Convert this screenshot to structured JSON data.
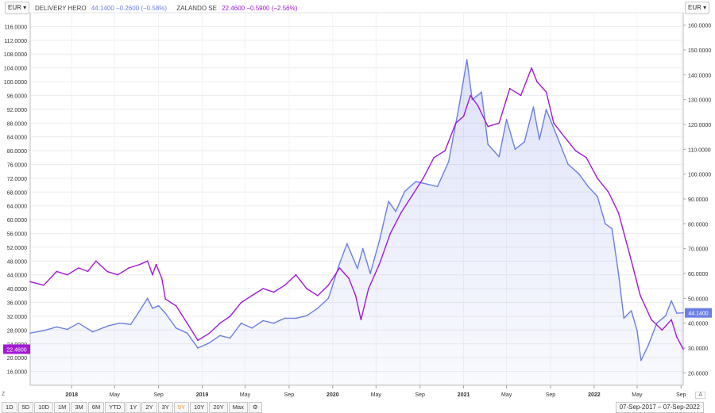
{
  "currency_left": "EUR",
  "currency_right": "EUR",
  "legend": {
    "s1_name": "DELIVERY HERO",
    "s1_quote": "44.1400 −0.2600 (−0.58%)",
    "s2_name": "ZALANDO SE",
    "s2_quote": "22.4600 −0.5900 (−2.56%)"
  },
  "colors": {
    "delivery_hero": "#6b7fe3",
    "zalando": "#a21ad6",
    "active": "#f39a2b"
  },
  "toolbar": {
    "buttons": [
      "1D",
      "5D",
      "10D",
      "1M",
      "3M",
      "6M",
      "YTD",
      "1Y",
      "2Y",
      "3Y",
      "5Y",
      "10Y",
      "20Y",
      "Max"
    ],
    "active": "5Y",
    "settings_icon": "gear-icon",
    "zoom_label": "Z",
    "auto_label": "A"
  },
  "date_range": "07-Sep-2017 – 07-Sep-2022",
  "chart_data": {
    "type": "line",
    "x_axis": {
      "range": [
        "2017-09-07",
        "2022-09-07"
      ],
      "tick_labels": [
        {
          "date": "2018-01-01",
          "label": "2018"
        },
        {
          "date": "2018-05-01",
          "label": "May"
        },
        {
          "date": "2018-09-01",
          "label": "Sep"
        },
        {
          "date": "2019-01-01",
          "label": "2019"
        },
        {
          "date": "2019-05-01",
          "label": "May"
        },
        {
          "date": "2019-09-01",
          "label": "Sep"
        },
        {
          "date": "2020-01-01",
          "label": "2020"
        },
        {
          "date": "2020-05-01",
          "label": "May"
        },
        {
          "date": "2020-09-01",
          "label": "Sep"
        },
        {
          "date": "2021-01-01",
          "label": "2021"
        },
        {
          "date": "2021-05-01",
          "label": "May"
        },
        {
          "date": "2021-09-01",
          "label": "Sep"
        },
        {
          "date": "2022-01-01",
          "label": "2022"
        },
        {
          "date": "2022-05-01",
          "label": "May"
        },
        {
          "date": "2022-09-01",
          "label": "Sep"
        }
      ]
    },
    "left_axis": {
      "ylim": [
        12,
        120
      ],
      "tick_labels": [
        "16.0000",
        "20.0000",
        "24.0000",
        "28.0000",
        "32.0000",
        "36.0000",
        "40.0000",
        "44.0000",
        "48.0000",
        "52.0000",
        "56.0000",
        "60.0000",
        "64.0000",
        "68.0000",
        "72.0000",
        "76.0000",
        "80.0000",
        "84.0000",
        "88.0000",
        "92.0000",
        "96.0000",
        "100.0000",
        "104.0000",
        "108.0000",
        "112.0000",
        "116.0000"
      ],
      "last_value_label": "22.4600"
    },
    "right_axis": {
      "ylim": [
        15,
        165
      ],
      "tick_labels": [
        "20.0000",
        "30.0000",
        "40.0000",
        "50.0000",
        "60.0000",
        "70.0000",
        "80.0000",
        "90.0000",
        "100.0000",
        "110.0000",
        "120.0000",
        "130.0000",
        "140.0000",
        "150.0000",
        "160.0000"
      ],
      "last_value_label": "44.1400"
    },
    "grid": true,
    "series": [
      {
        "name": "DELIVERY HERO",
        "axis": "right",
        "area_fill": true,
        "points": [
          [
            "2017-09-07",
            36
          ],
          [
            "2017-10-15",
            37
          ],
          [
            "2017-11-20",
            38.5
          ],
          [
            "2017-12-20",
            37.5
          ],
          [
            "2018-01-20",
            40
          ],
          [
            "2018-03-01",
            36.5
          ],
          [
            "2018-04-15",
            39
          ],
          [
            "2018-05-15",
            40
          ],
          [
            "2018-06-15",
            39.5
          ],
          [
            "2018-07-10",
            45
          ],
          [
            "2018-08-01",
            50
          ],
          [
            "2018-08-15",
            46
          ],
          [
            "2018-09-01",
            47
          ],
          [
            "2018-09-20",
            44
          ],
          [
            "2018-10-20",
            38
          ],
          [
            "2018-11-20",
            36
          ],
          [
            "2018-12-20",
            30
          ],
          [
            "2019-01-20",
            32
          ],
          [
            "2019-02-20",
            35
          ],
          [
            "2019-03-20",
            34
          ],
          [
            "2019-04-20",
            40
          ],
          [
            "2019-05-20",
            38
          ],
          [
            "2019-06-20",
            41
          ],
          [
            "2019-07-20",
            40
          ],
          [
            "2019-08-20",
            42
          ],
          [
            "2019-09-20",
            42
          ],
          [
            "2019-10-20",
            43
          ],
          [
            "2019-11-20",
            46
          ],
          [
            "2019-12-20",
            50
          ],
          [
            "2020-01-20",
            64
          ],
          [
            "2020-02-10",
            72
          ],
          [
            "2020-03-10",
            62
          ],
          [
            "2020-03-25",
            70
          ],
          [
            "2020-04-15",
            60
          ],
          [
            "2020-05-10",
            73
          ],
          [
            "2020-06-05",
            89
          ],
          [
            "2020-06-25",
            85
          ],
          [
            "2020-07-20",
            93
          ],
          [
            "2020-08-20",
            97
          ],
          [
            "2020-09-20",
            96
          ],
          [
            "2020-10-20",
            95
          ],
          [
            "2020-11-20",
            105
          ],
          [
            "2020-12-20",
            128
          ],
          [
            "2021-01-10",
            146
          ],
          [
            "2021-01-25",
            130
          ],
          [
            "2021-02-20",
            133
          ],
          [
            "2021-03-10",
            112
          ],
          [
            "2021-04-10",
            107
          ],
          [
            "2021-05-01",
            122
          ],
          [
            "2021-05-25",
            110
          ],
          [
            "2021-06-20",
            113
          ],
          [
            "2021-07-15",
            127
          ],
          [
            "2021-08-01",
            114
          ],
          [
            "2021-08-20",
            126
          ],
          [
            "2021-09-20",
            115
          ],
          [
            "2021-10-20",
            104
          ],
          [
            "2021-11-20",
            100
          ],
          [
            "2021-12-15",
            95
          ],
          [
            "2022-01-10",
            91
          ],
          [
            "2022-02-01",
            80
          ],
          [
            "2022-02-20",
            78
          ],
          [
            "2022-03-10",
            60
          ],
          [
            "2022-03-25",
            42
          ],
          [
            "2022-04-15",
            45
          ],
          [
            "2022-05-01",
            37
          ],
          [
            "2022-05-12",
            25
          ],
          [
            "2022-06-01",
            31
          ],
          [
            "2022-06-25",
            40
          ],
          [
            "2022-07-20",
            43
          ],
          [
            "2022-08-05",
            49
          ],
          [
            "2022-08-20",
            44
          ],
          [
            "2022-09-07",
            44.14
          ]
        ]
      },
      {
        "name": "ZALANDO SE",
        "axis": "left",
        "area_fill": false,
        "points": [
          [
            "2017-09-07",
            42
          ],
          [
            "2017-10-15",
            41
          ],
          [
            "2017-11-20",
            45
          ],
          [
            "2017-12-20",
            44
          ],
          [
            "2018-01-20",
            46
          ],
          [
            "2018-02-15",
            45
          ],
          [
            "2018-03-10",
            48
          ],
          [
            "2018-04-10",
            45
          ],
          [
            "2018-05-10",
            44
          ],
          [
            "2018-06-10",
            46
          ],
          [
            "2018-07-10",
            47
          ],
          [
            "2018-08-01",
            48
          ],
          [
            "2018-08-15",
            44
          ],
          [
            "2018-08-25",
            47
          ],
          [
            "2018-09-10",
            43
          ],
          [
            "2018-09-20",
            37
          ],
          [
            "2018-10-20",
            35
          ],
          [
            "2018-11-20",
            30
          ],
          [
            "2018-12-20",
            25
          ],
          [
            "2019-01-20",
            27
          ],
          [
            "2019-02-20",
            30
          ],
          [
            "2019-03-20",
            32
          ],
          [
            "2019-04-20",
            36
          ],
          [
            "2019-05-20",
            38
          ],
          [
            "2019-06-20",
            40
          ],
          [
            "2019-07-20",
            39
          ],
          [
            "2019-08-20",
            41
          ],
          [
            "2019-09-20",
            44
          ],
          [
            "2019-10-20",
            40
          ],
          [
            "2019-11-20",
            38
          ],
          [
            "2019-12-20",
            41
          ],
          [
            "2020-01-20",
            46
          ],
          [
            "2020-02-15",
            43
          ],
          [
            "2020-03-05",
            38
          ],
          [
            "2020-03-20",
            31
          ],
          [
            "2020-04-10",
            40
          ],
          [
            "2020-05-10",
            47
          ],
          [
            "2020-06-10",
            56
          ],
          [
            "2020-07-10",
            62
          ],
          [
            "2020-08-10",
            67
          ],
          [
            "2020-09-10",
            72
          ],
          [
            "2020-10-10",
            78
          ],
          [
            "2020-11-10",
            80
          ],
          [
            "2020-12-10",
            88
          ],
          [
            "2021-01-01",
            90
          ],
          [
            "2021-01-20",
            96
          ],
          [
            "2021-02-10",
            93
          ],
          [
            "2021-03-10",
            87
          ],
          [
            "2021-04-10",
            88
          ],
          [
            "2021-05-10",
            98
          ],
          [
            "2021-06-10",
            96
          ],
          [
            "2021-07-10",
            104
          ],
          [
            "2021-07-25",
            100
          ],
          [
            "2021-08-20",
            97
          ],
          [
            "2021-09-10",
            88
          ],
          [
            "2021-10-10",
            84
          ],
          [
            "2021-11-10",
            80
          ],
          [
            "2021-12-10",
            78
          ],
          [
            "2022-01-10",
            72
          ],
          [
            "2022-02-10",
            68
          ],
          [
            "2022-03-10",
            62
          ],
          [
            "2022-04-10",
            50
          ],
          [
            "2022-05-10",
            38
          ],
          [
            "2022-06-10",
            31
          ],
          [
            "2022-07-10",
            28
          ],
          [
            "2022-08-05",
            31
          ],
          [
            "2022-08-20",
            26
          ],
          [
            "2022-09-07",
            22.46
          ]
        ]
      }
    ]
  }
}
